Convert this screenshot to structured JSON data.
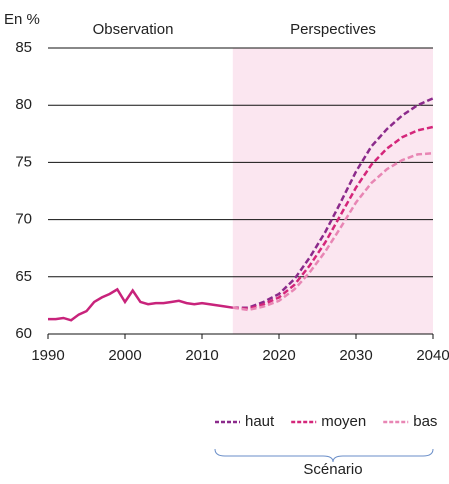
{
  "chart_data": {
    "type": "line",
    "y_label": "En %",
    "annotations": [
      "Observation",
      "Perspectives"
    ],
    "legend_title": "Scénario",
    "xlim": [
      1990,
      2040
    ],
    "xticks": [
      1990,
      2000,
      2010,
      2020,
      2030,
      2040
    ],
    "ylim": [
      60,
      85
    ],
    "yticks": [
      60,
      65,
      70,
      75,
      80,
      85
    ],
    "grid": true,
    "projection_start": 2014,
    "projection_color": "#fbe6f0",
    "observation": {
      "color": "#c8237b",
      "x": [
        1990,
        1991,
        1992,
        1993,
        1994,
        1995,
        1996,
        1997,
        1998,
        1999,
        2000,
        2001,
        2002,
        2003,
        2004,
        2005,
        2006,
        2007,
        2008,
        2009,
        2010,
        2011,
        2012,
        2013,
        2014
      ],
      "values": [
        61.3,
        61.3,
        61.4,
        61.2,
        61.7,
        62.0,
        62.8,
        63.2,
        63.5,
        63.9,
        62.8,
        63.8,
        62.8,
        62.6,
        62.7,
        62.7,
        62.8,
        62.9,
        62.7,
        62.6,
        62.7,
        62.6,
        62.5,
        62.4,
        62.3
      ]
    },
    "series": [
      {
        "name": "haut",
        "color": "#8b2a8b",
        "x": [
          2014,
          2016,
          2018,
          2020,
          2022,
          2024,
          2026,
          2028,
          2030,
          2032,
          2034,
          2036,
          2038,
          2040
        ],
        "values": [
          62.3,
          62.3,
          62.8,
          63.5,
          64.8,
          66.7,
          68.9,
          71.5,
          74.2,
          76.4,
          77.9,
          79.1,
          80.0,
          80.6
        ]
      },
      {
        "name": "moyen",
        "color": "#d4267a",
        "x": [
          2014,
          2016,
          2018,
          2020,
          2022,
          2024,
          2026,
          2028,
          2030,
          2032,
          2034,
          2036,
          2038,
          2040
        ],
        "values": [
          62.3,
          62.2,
          62.6,
          63.2,
          64.3,
          66.0,
          68.0,
          70.4,
          72.8,
          74.8,
          76.2,
          77.2,
          77.8,
          78.1
        ]
      },
      {
        "name": "bas",
        "color": "#e886b4",
        "x": [
          2014,
          2016,
          2018,
          2020,
          2022,
          2024,
          2026,
          2028,
          2030,
          2032,
          2034,
          2036,
          2038,
          2040
        ],
        "values": [
          62.3,
          62.1,
          62.4,
          62.9,
          63.9,
          65.4,
          67.2,
          69.3,
          71.5,
          73.2,
          74.4,
          75.2,
          75.7,
          75.8
        ]
      }
    ]
  }
}
